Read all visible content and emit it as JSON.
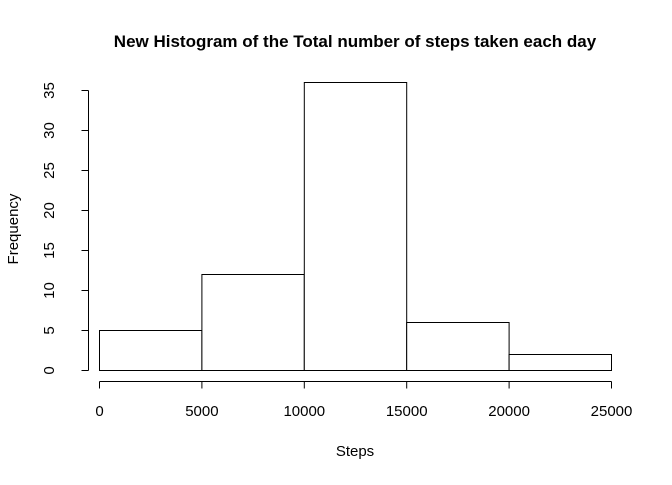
{
  "chart_data": {
    "type": "bar",
    "title": "New Histogram of the Total number of steps taken each day",
    "xlabel": "Steps",
    "ylabel": "Frequency",
    "bins": [
      {
        "from": 0,
        "to": 5000,
        "value": 5
      },
      {
        "from": 5000,
        "to": 10000,
        "value": 12
      },
      {
        "from": 10000,
        "to": 15000,
        "value": 36
      },
      {
        "from": 15000,
        "to": 20000,
        "value": 6
      },
      {
        "from": 20000,
        "to": 25000,
        "value": 2
      }
    ],
    "xlim": [
      0,
      25000
    ],
    "ylim": [
      0,
      35
    ],
    "x_ticks": [
      0,
      5000,
      10000,
      15000,
      20000,
      25000
    ],
    "y_ticks": [
      0,
      5,
      10,
      15,
      20,
      25,
      30,
      35
    ],
    "grid": false,
    "colors": {
      "bar_fill": "#ffffff",
      "bar_stroke": "#000000"
    }
  }
}
